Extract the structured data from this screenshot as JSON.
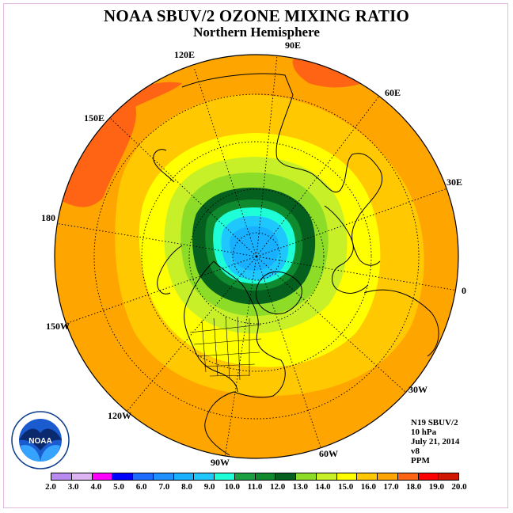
{
  "title": "NOAA SBUV/2 OZONE MIXING RATIO",
  "subtitle": "Northern Hemisphere",
  "longitude_labels": [
    "90E",
    "60E",
    "30E",
    "0",
    "30W",
    "60W",
    "90W",
    "120W",
    "150W",
    "180",
    "150E",
    "120E"
  ],
  "info": {
    "satellite": "N19 SBUV/2",
    "level": "10 hPa",
    "date": "July 21, 2014",
    "version": "v8",
    "units": "PPM"
  },
  "colorbar": {
    "ticks": [
      "2.0",
      "3.0",
      "4.0",
      "5.0",
      "6.0",
      "7.0",
      "8.0",
      "9.0",
      "10.0",
      "11.0",
      "12.0",
      "13.0",
      "14.0",
      "15.0",
      "16.0",
      "17.0",
      "18.0",
      "19.0",
      "20.0"
    ],
    "colors": [
      "#b98af0",
      "#dcb4f4",
      "#ff00ff",
      "#0000ff",
      "#1e6bff",
      "#1e90ff",
      "#18b0ff",
      "#1ec8ff",
      "#1effd8",
      "#1aa040",
      "#0f8a2e",
      "#056020",
      "#8cdc28",
      "#c8f028",
      "#ffff00",
      "#ffc800",
      "#ffa500",
      "#ff6414",
      "#ff0000",
      "#d01800"
    ]
  },
  "logo": {
    "text": "NOAA",
    "icon": "noaa-logo-icon"
  }
}
